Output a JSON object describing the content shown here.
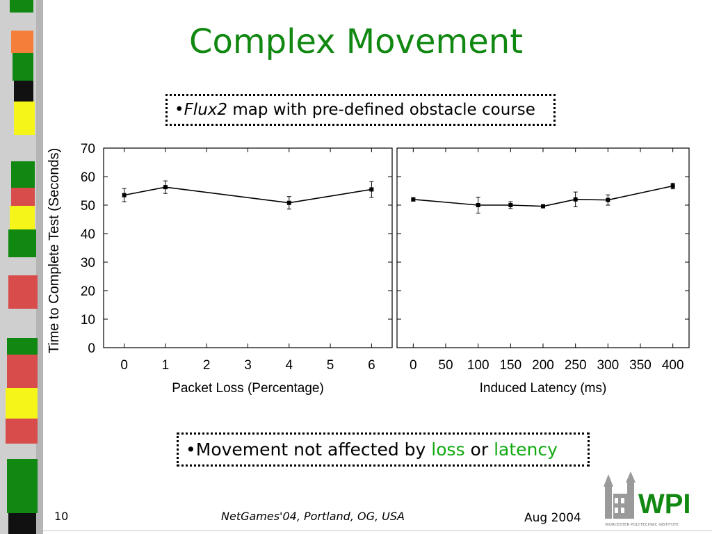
{
  "slide": {
    "title": "Complex Movement",
    "bullet_top_prefix": "•",
    "bullet_top_italic": "Flux2",
    "bullet_top_rest": " map with pre-defined obstacle course",
    "bullet_bottom_prefix": "•Movement not affected by ",
    "bullet_bottom_loss": "loss",
    "bullet_bottom_or": " or ",
    "bullet_bottom_latency": "latency",
    "page_number": "10",
    "conference": "NetGames'04, Portland, OG, USA",
    "date": "Aug 2004",
    "logo_text": "WPI",
    "logo_subtext": "WORCESTER POLYTECHNIC INSTITUTE",
    "accent_color": "#118811"
  },
  "chart_data": [
    {
      "type": "line",
      "xlabel": "Packet Loss (Percentage)",
      "ylabel": "Time to Complete Test (Seconds)",
      "xlim": [
        -0.5,
        6.5
      ],
      "ylim": [
        0,
        70
      ],
      "xticks": [
        0,
        1,
        2,
        3,
        4,
        5,
        6
      ],
      "yticks": [
        0,
        10,
        20,
        30,
        40,
        50,
        60,
        70
      ],
      "x": [
        0,
        1,
        4,
        6
      ],
      "y": [
        53.5,
        56.3,
        50.8,
        55.5
      ],
      "error": [
        2.3,
        2.2,
        2.2,
        2.8
      ],
      "grid": false,
      "legend": "none"
    },
    {
      "type": "line",
      "xlabel": "Induced Latency (ms)",
      "ylabel": "",
      "xlim": [
        -25,
        425
      ],
      "ylim": [
        0,
        70
      ],
      "xticks": [
        0,
        50,
        100,
        150,
        200,
        250,
        300,
        350,
        400
      ],
      "yticks": [
        0,
        10,
        20,
        30,
        40,
        50,
        60,
        70
      ],
      "x": [
        0,
        100,
        150,
        200,
        250,
        300,
        400
      ],
      "y": [
        52.0,
        50.0,
        50.0,
        49.6,
        52.0,
        51.8,
        56.7
      ],
      "error": [
        0.6,
        2.8,
        1.2,
        0.5,
        2.6,
        1.8,
        1.0
      ],
      "grid": false,
      "legend": "none"
    }
  ]
}
